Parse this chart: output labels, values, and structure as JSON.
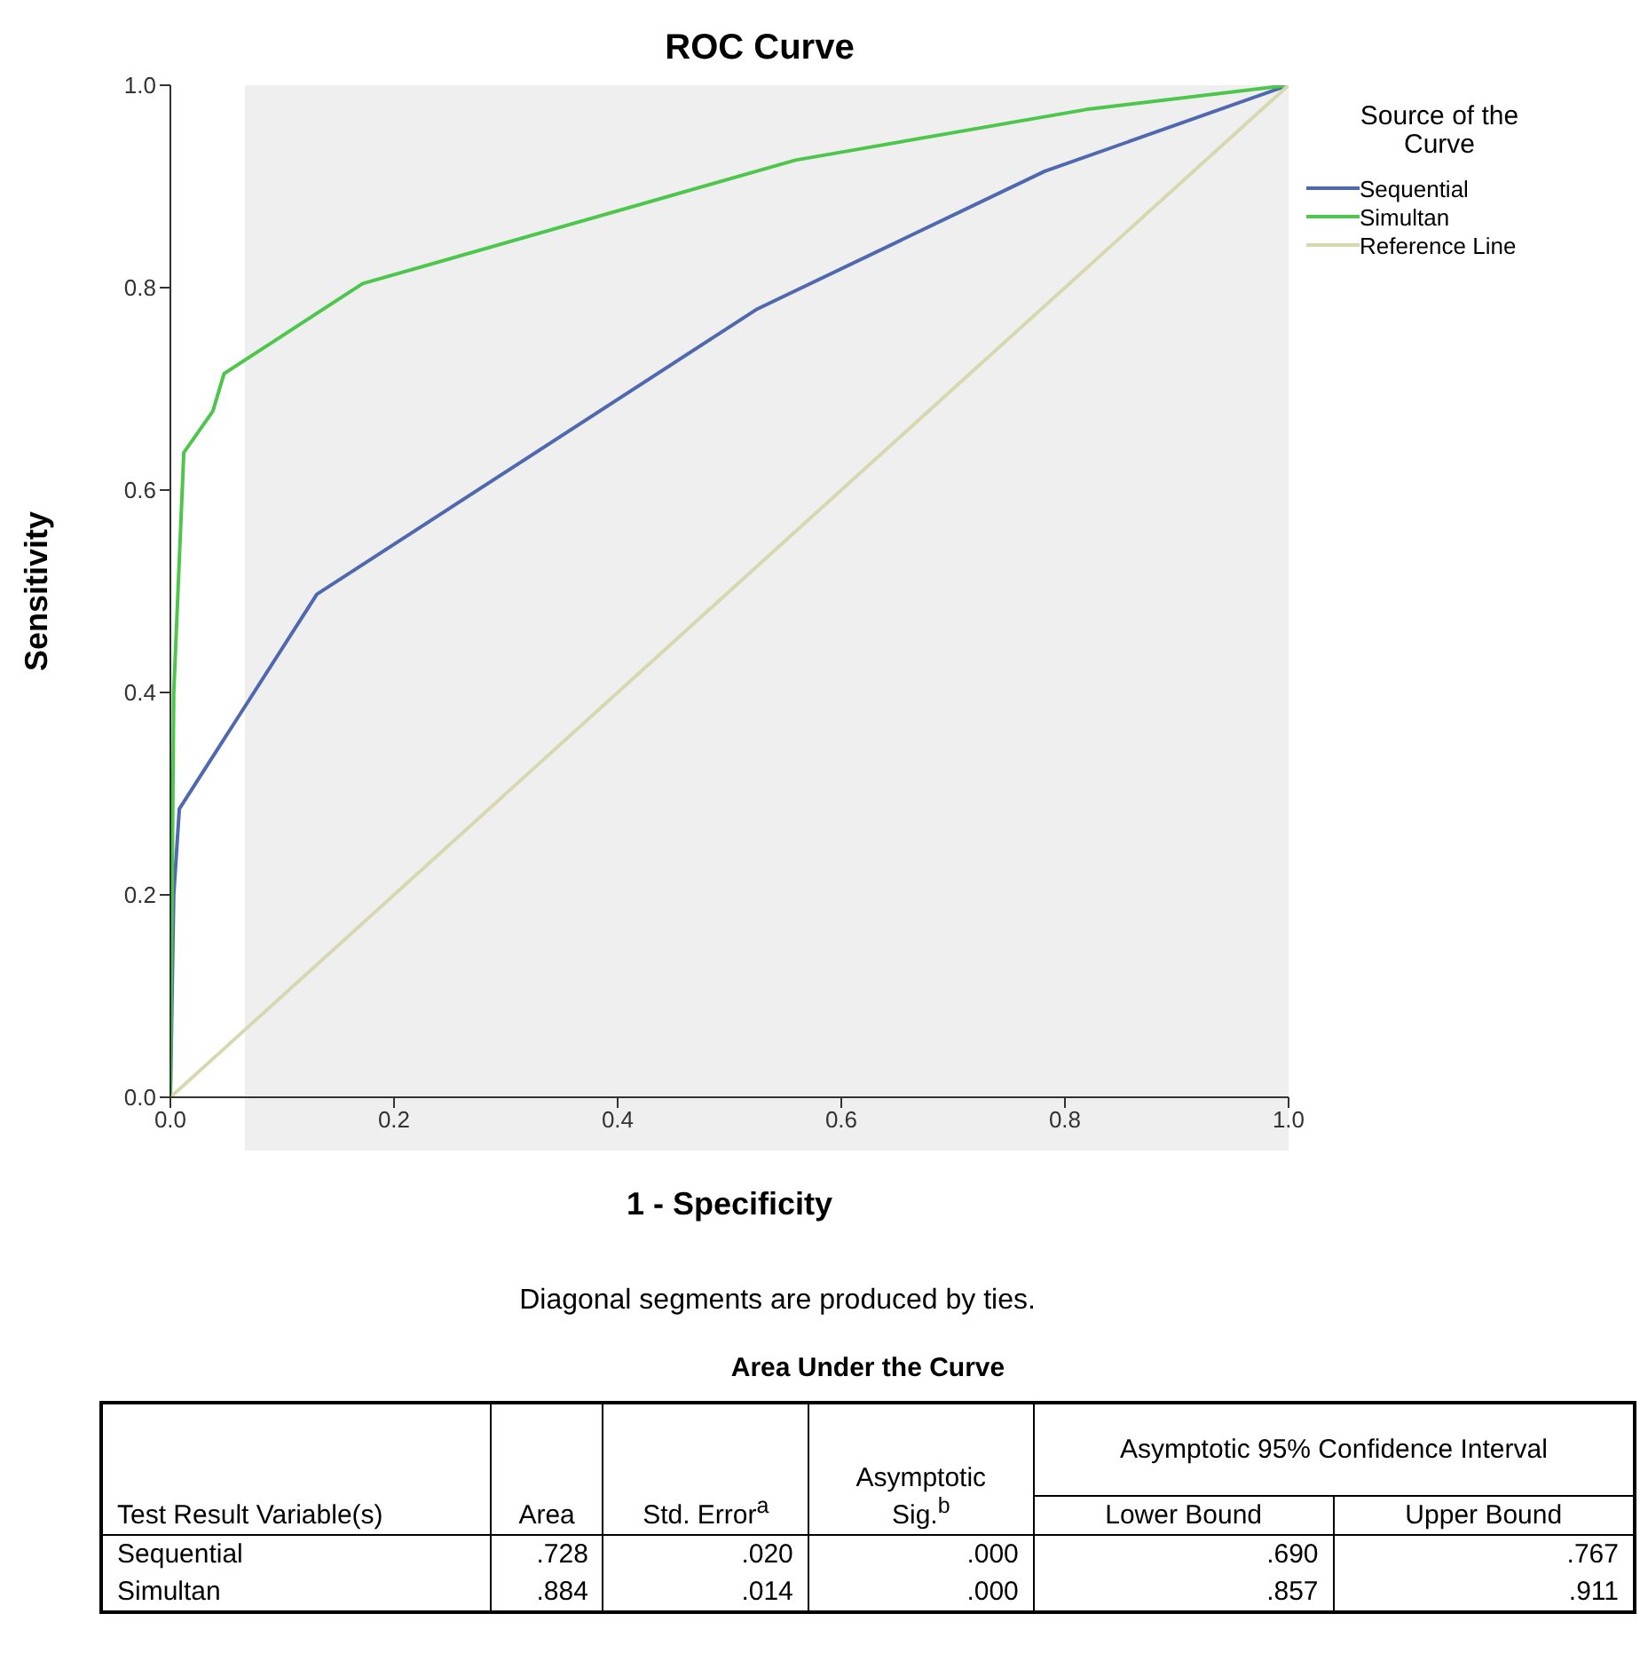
{
  "chart_data": {
    "type": "line",
    "title": "ROC Curve",
    "xlabel": "1 - Specificity",
    "ylabel": "Sensitivity",
    "legend_title": "Source of the Curve",
    "legend": "top right",
    "marker": "none",
    "line_style": "solid",
    "xlim": [
      0,
      1
    ],
    "ylim": [
      0,
      1
    ],
    "xticks": [
      {
        "value": 0,
        "label": "0.0"
      },
      0.2,
      0.4,
      0.6,
      0.8,
      {
        "value": 1,
        "label": "1.0"
      }
    ],
    "yticks": [
      {
        "value": 0,
        "label": "0.0"
      },
      0.2,
      0.4,
      0.6,
      0.8,
      {
        "value": 1,
        "label": "1.0"
      }
    ],
    "series": [
      {
        "name": "Sequential",
        "color": "#5068b0",
        "x": [
          0,
          0.003,
          0.008,
          0.131,
          0.525,
          0.782,
          1
        ],
        "values": [
          0,
          0.2,
          0.285,
          0.497,
          0.779,
          0.915,
          1
        ]
      },
      {
        "name": "Simultan",
        "color": "#4cc74c",
        "x": [
          0,
          0.003,
          0.012,
          0.038,
          0.048,
          0.172,
          0.559,
          0.819,
          1
        ],
        "values": [
          0,
          0.4,
          0.637,
          0.678,
          0.715,
          0.804,
          0.926,
          0.976,
          1
        ]
      },
      {
        "name": "Reference Line",
        "color": "#d8d8b0",
        "x": [
          0,
          1
        ],
        "values": [
          0,
          1
        ]
      }
    ],
    "annotations": [
      "Diagonal segments are produced by ties.",
      "Area Under the Curve",
      "Test Result Variable(s)",
      "Area",
      "Std. Error$^{a}$",
      "Asymptotic Sig.$^{b}$",
      "Asymptotic 95% Confidence Interval",
      "Lower Bound",
      "Upper Bound",
      "Sequential",
      ".728",
      ".020",
      ".000",
      ".690",
      ".767",
      "Simultan",
      ".884",
      ".014",
      ".000",
      ".857",
      ".911"
    ]
  }
}
